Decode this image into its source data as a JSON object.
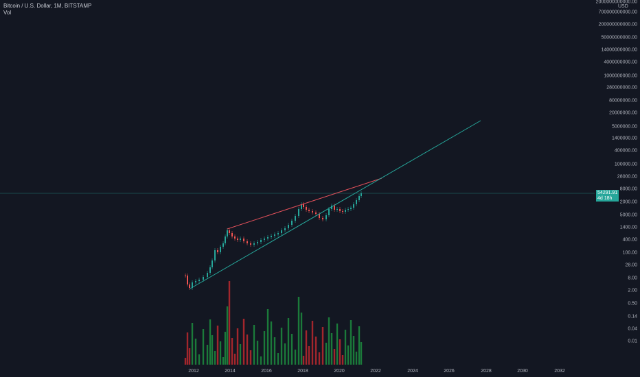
{
  "header": {
    "symbol_line": "Bitcoin / U.S. Dollar, 1M, BITSTAMP",
    "volume_label": "Vol"
  },
  "price_axis": {
    "currency": "USD",
    "ticks": [
      "2000000000000.00",
      "700000000000.00",
      "200000000000.00",
      "50000000000.00",
      "14000000000.00",
      "4000000000.00",
      "1000000000.00",
      "280000000.00",
      "80000000.00",
      "20000000.00",
      "5000000.00",
      "1400000.00",
      "400000.00",
      "100000.00",
      "28000.00",
      "8000.00",
      "2000.00",
      "",
      "5000.00",
      "1400.00",
      "400.00",
      "100.00",
      "28.00",
      "8.00",
      "2.00",
      "0.50",
      "0.14",
      "0.04",
      "0.01"
    ]
  },
  "current_price": {
    "value": "54291.91",
    "countdown": "4d 18h"
  },
  "time_axis": {
    "ticks": [
      "2012",
      "2014",
      "2016",
      "2018",
      "2020",
      "2022",
      "2024",
      "2026",
      "2028",
      "2030",
      "2032"
    ]
  },
  "colors": {
    "background": "#131722",
    "up": "#26a69a",
    "down": "#ef5350",
    "volume_up": "#1b7a3a",
    "volume_down": "#a3262c",
    "resistance_line": "#e0505a",
    "support_line": "#26a69a",
    "price_line": "#26a69a"
  },
  "chart_data": {
    "type": "candlestick",
    "scale": "log",
    "series": [
      {
        "name": "Vol",
        "type": "bar"
      }
    ],
    "trendlines": [
      {
        "color": "resistance",
        "from": [
          "2013-12",
          1150
        ],
        "to": [
          "2021-06",
          140000
        ]
      },
      {
        "color": "support",
        "from": [
          "2011-11",
          2.2
        ],
        "to": [
          "2027-09",
          28000000
        ]
      }
    ],
    "last_price": 54291.91
  }
}
